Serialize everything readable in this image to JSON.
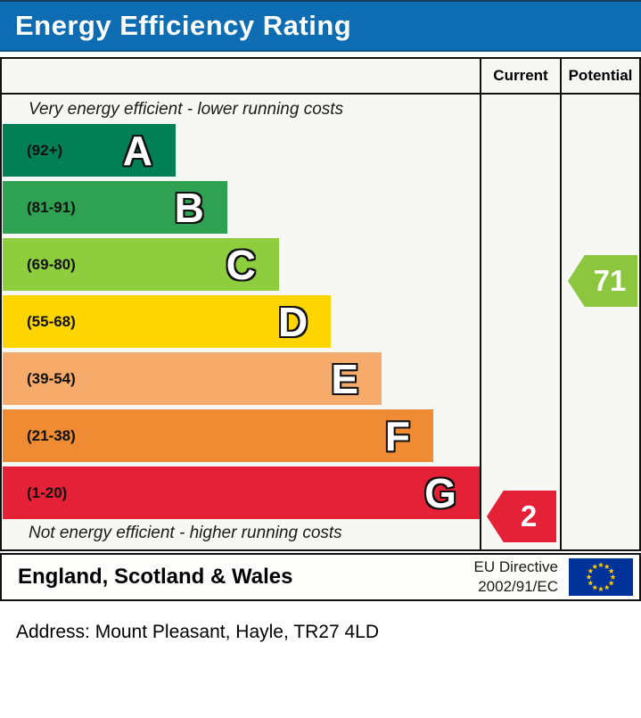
{
  "header": {
    "title": "Energy Efficiency Rating"
  },
  "table": {
    "col_current": "Current",
    "col_potential": "Potential"
  },
  "chart_data": {
    "type": "bar",
    "subtype": "epc-energy-efficiency-scale",
    "top_caption": "Very energy efficient - lower running costs",
    "bottom_caption": "Not energy efficient - higher running costs",
    "bands": [
      {
        "letter": "A",
        "range": "(92+)",
        "min": 92,
        "max": 100,
        "color": "#008054",
        "width_pct": 36.2
      },
      {
        "letter": "B",
        "range": "(81-91)",
        "min": 81,
        "max": 91,
        "color": "#2ea152",
        "width_pct": 47.0
      },
      {
        "letter": "C",
        "range": "(69-80)",
        "min": 69,
        "max": 80,
        "color": "#8ece3e",
        "width_pct": 57.8
      },
      {
        "letter": "D",
        "range": "(55-68)",
        "min": 55,
        "max": 68,
        "color": "#ffd500",
        "width_pct": 68.7
      },
      {
        "letter": "E",
        "range": "(39-54)",
        "min": 39,
        "max": 54,
        "color": "#f7ab6a",
        "width_pct": 79.3
      },
      {
        "letter": "F",
        "range": "(21-38)",
        "min": 21,
        "max": 38,
        "color": "#ee8b33",
        "width_pct": 90.1
      },
      {
        "letter": "G",
        "range": "(1-20)",
        "min": 1,
        "max": 20,
        "color": "#e52138",
        "width_pct": 99.8
      }
    ],
    "current": {
      "value": 2,
      "color": "#e52138"
    },
    "potential": {
      "value": 71,
      "color": "#8cc63f"
    },
    "accent_header_blue": "#0e6db2"
  },
  "footer": {
    "region": "England, Scotland & Wales",
    "directive_line1": "EU Directive",
    "directive_line2": "2002/91/EC",
    "eu_flag": {
      "field": "#003399",
      "stars": "#ffcc00"
    }
  },
  "address_line": "Address: Mount Pleasant, Hayle, TR27 4LD"
}
